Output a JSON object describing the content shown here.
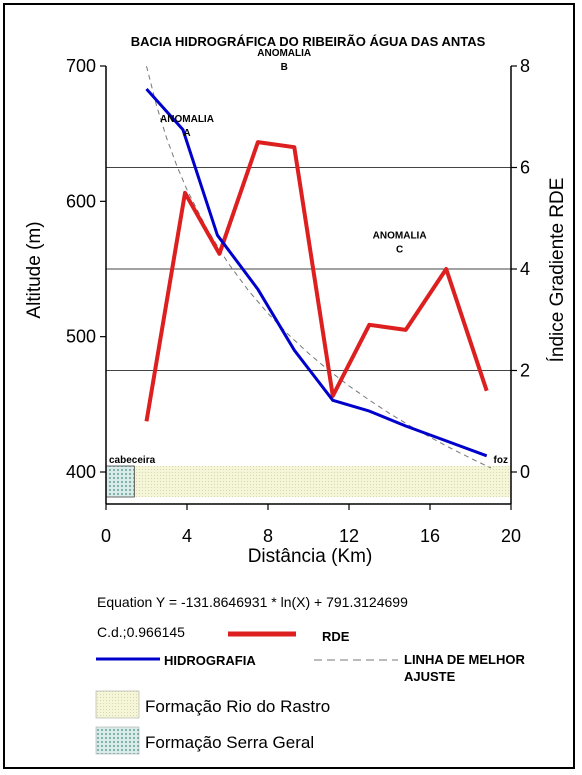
{
  "chart_data": {
    "type": "line",
    "title": "BACIA HIDROGRÁFICA DO RIBEIRÃO ÁGUA DAS ANTAS",
    "xlabel": "Distância (Km)",
    "ylabel": "Altitude (m)",
    "y2label": "Índice Gradiente RDE",
    "xlim": [
      0,
      20
    ],
    "ylim": [
      400,
      700
    ],
    "y2lim": [
      0,
      8
    ],
    "xticks": [
      0,
      4,
      8,
      12,
      16,
      20
    ],
    "yticks": [
      400,
      500,
      600,
      700
    ],
    "y2ticks": [
      0,
      2,
      4,
      6,
      8
    ],
    "y2_gridlines": true,
    "series": [
      {
        "name": "HIDROGRAFIA",
        "axis": "left",
        "color": "#0000cc",
        "x": [
          2.0,
          3.8,
          5.5,
          7.5,
          9.3,
          11.2,
          13.0,
          14.8,
          16.8,
          18.8
        ],
        "y": [
          683,
          653,
          575,
          535,
          490,
          453,
          445,
          434,
          423,
          412
        ]
      },
      {
        "name": "RDE",
        "axis": "right",
        "color": "#dd1f1f",
        "x": [
          2.0,
          3.9,
          5.6,
          7.5,
          9.3,
          11.2,
          13.0,
          14.8,
          16.8,
          18.8
        ],
        "y": [
          1.0,
          5.5,
          4.3,
          6.5,
          6.4,
          1.5,
          2.9,
          2.8,
          4.0,
          1.6
        ]
      },
      {
        "name": "LINHA DE MELHOR AJUSTE",
        "axis": "left",
        "color": "#777777",
        "dashed": true,
        "x": [
          2.0,
          2.5,
          3.0,
          3.5,
          4.0,
          5.0,
          6.0,
          7.0,
          8.0,
          9.0,
          10.0,
          11.0,
          12.0,
          13.0,
          14.0,
          15.0,
          16.0,
          17.0,
          18.0,
          19.0
        ],
        "y": [
          699.9,
          670.5,
          646.4,
          626.1,
          608.5,
          579.1,
          555.0,
          534.7,
          517.1,
          501.6,
          487.7,
          475.1,
          463.6,
          453.1,
          443.3,
          434.2,
          425.7,
          417.7,
          410.2,
          403.0
        ]
      }
    ],
    "annotations": [
      {
        "line1": "ANOMALIA",
        "line2": "A",
        "x": 4.0,
        "y2": 6.9
      },
      {
        "line1": "ANOMALIA",
        "line2": "B",
        "x": 8.8,
        "y2": 8.2
      },
      {
        "line1": "ANOMALIA",
        "line2": "C",
        "x": 14.5,
        "y2": 4.6
      }
    ],
    "formation_bar": {
      "serra_geral_km": [
        0,
        1.4
      ],
      "rio_do_rastro_km": [
        1.4,
        20
      ],
      "left_label": "cabeceira",
      "right_label": "foz"
    },
    "equation": "Equation Y = -131.8646931 * ln(X) + 791.3124699",
    "cd": "C.d.;0.966145",
    "legend": {
      "rde": "RDE",
      "hidrografia": "HIDROGRAFIA",
      "ajuste_line1": "LINHA DE MELHOR",
      "ajuste_line2": "AJUSTE",
      "rio_do_rastro": "Formação Rio do Rastro",
      "serra_geral": "Formação Serra Geral"
    },
    "colors": {
      "hidrografia": "#0000cc",
      "rde": "#dd1f1f",
      "ajuste": "#777777",
      "rio_do_rastro_fill": "#f5f5d8",
      "serra_geral_fill": "#d9ece7",
      "serra_geral_dots": "#3f8a88"
    }
  }
}
